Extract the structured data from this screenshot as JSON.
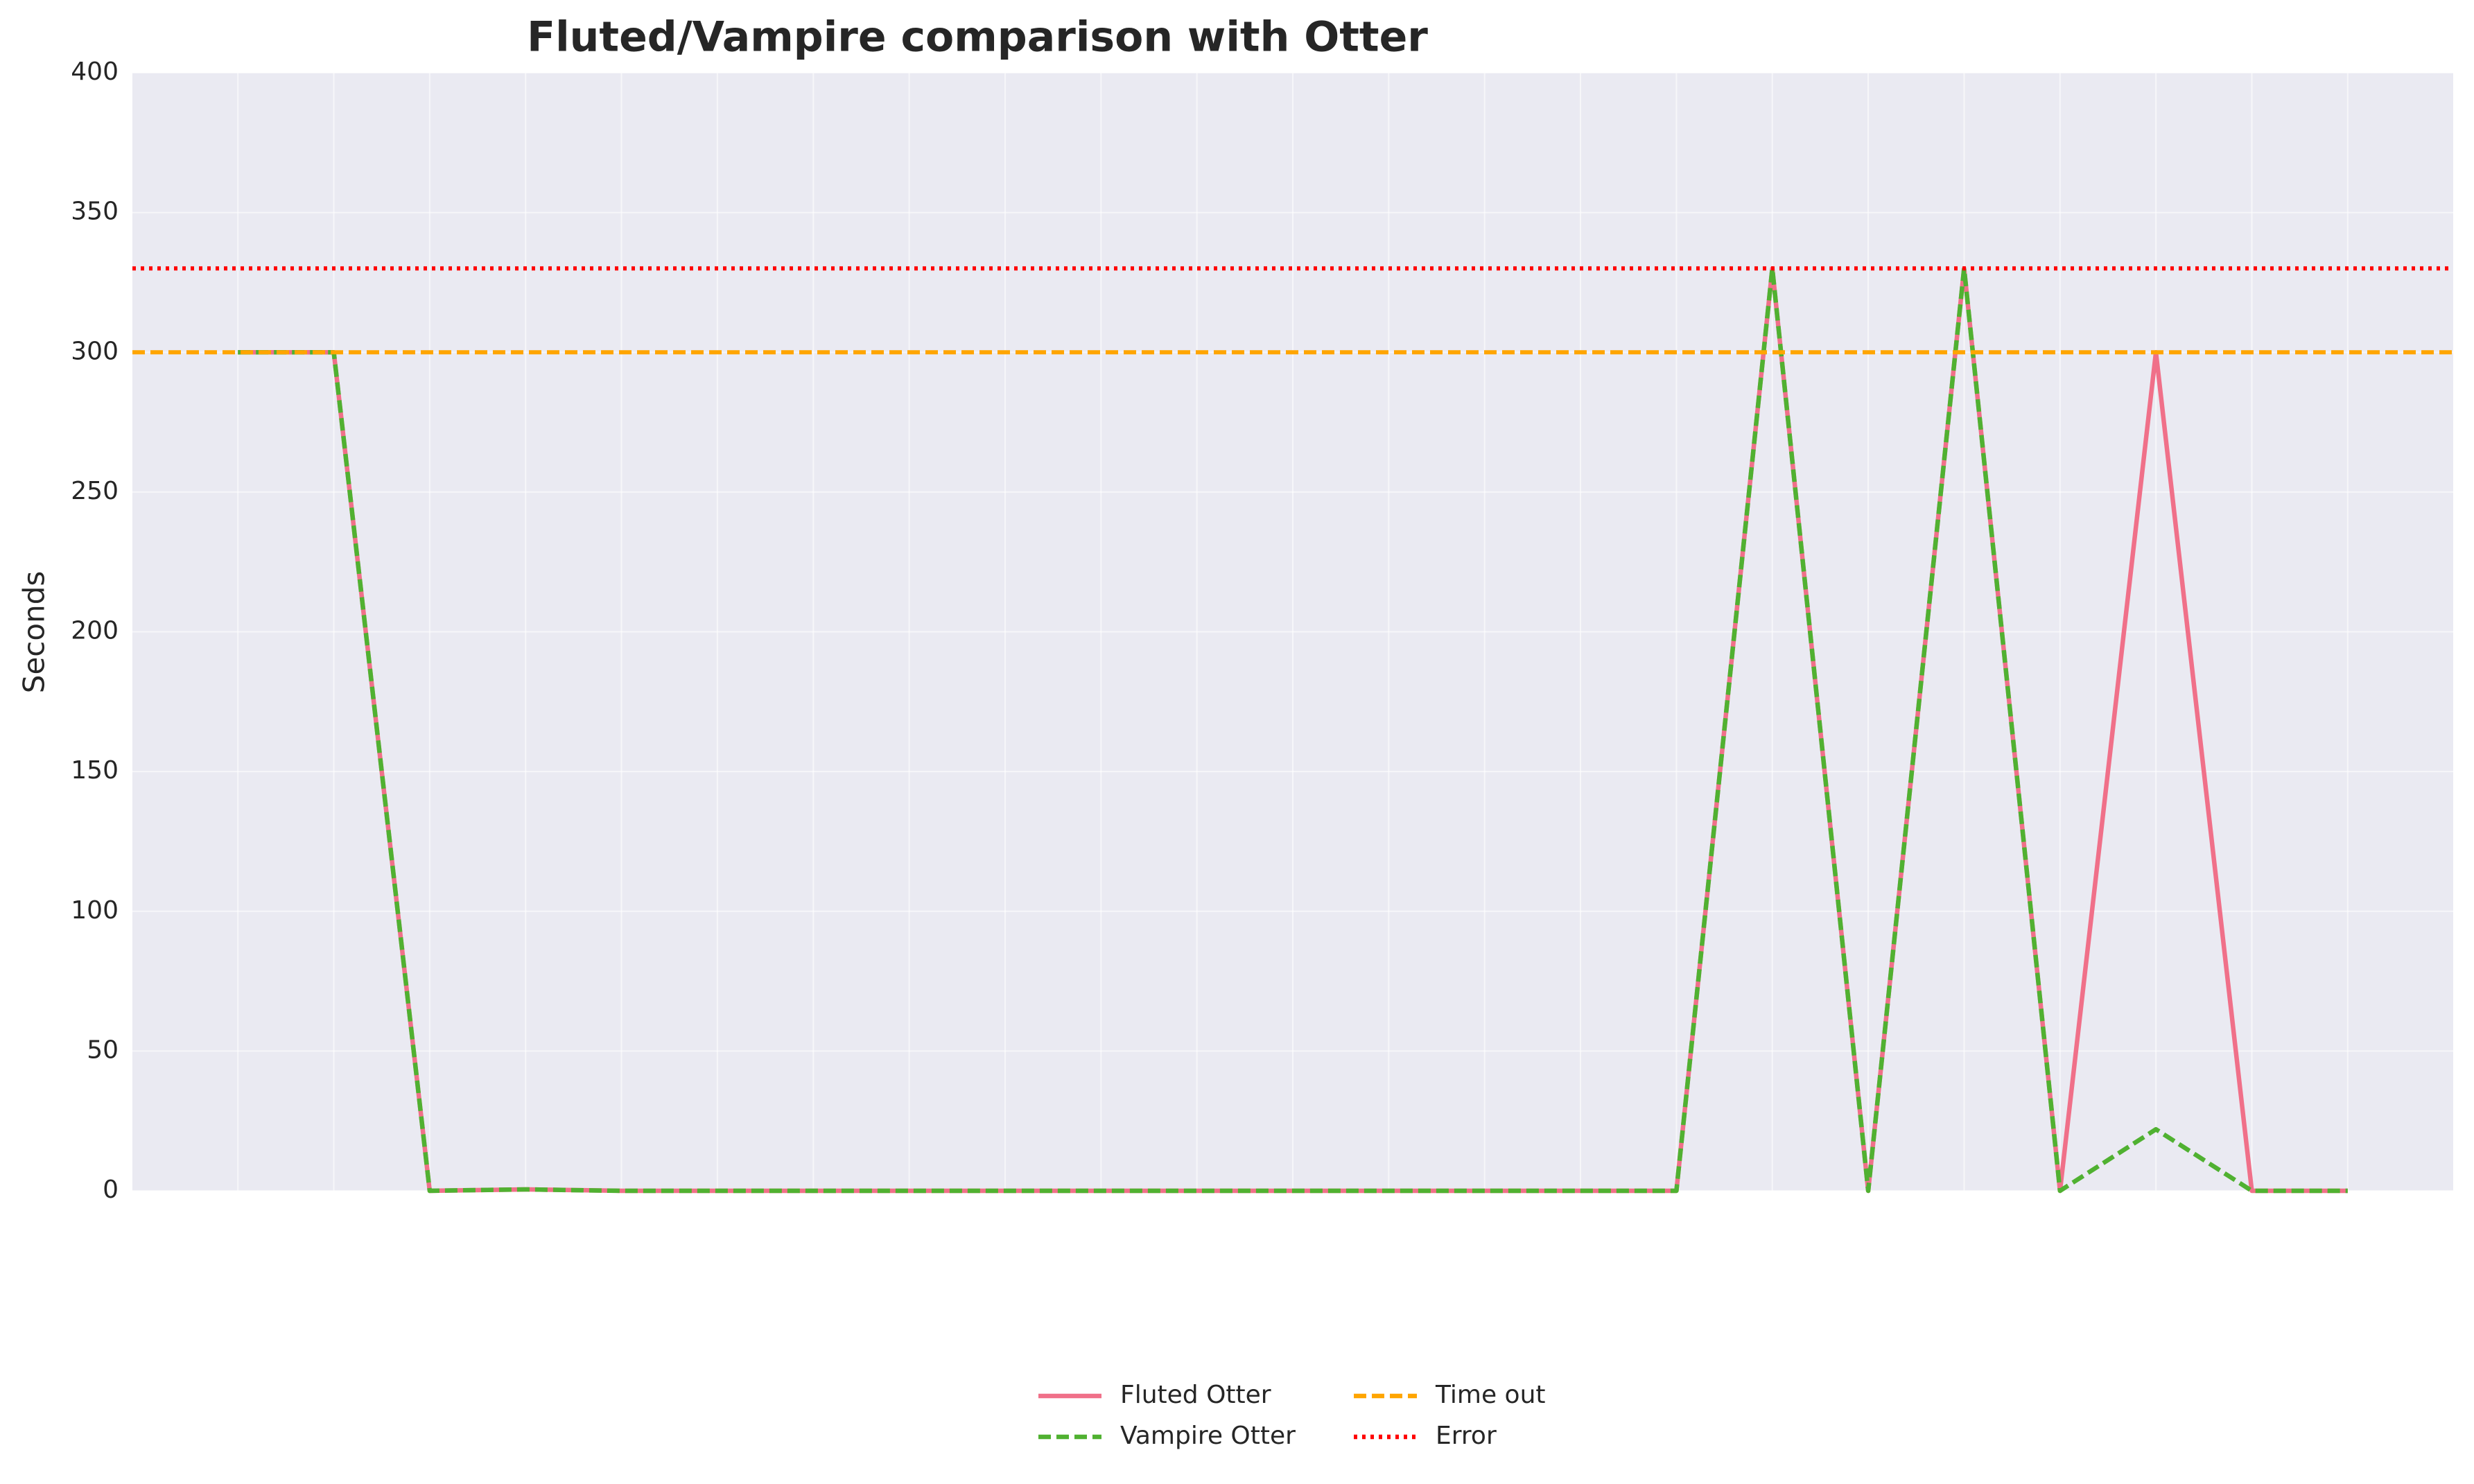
{
  "chart_data": {
    "type": "line",
    "title": "Fluted/Vampire comparison with Otter",
    "y_label": "Seconds",
    "categories": [
      null,
      null,
      null,
      null,
      null,
      null,
      null,
      null,
      null,
      null,
      null,
      null,
      null,
      null,
      null,
      null,
      null,
      null,
      null,
      null,
      null,
      null,
      null
    ],
    "series": [
      {
        "name": "Fluted Otter",
        "color": "#f07089",
        "style": "solid",
        "values": [
          300,
          300,
          0,
          0.5,
          0,
          0,
          0,
          0,
          0,
          0,
          0,
          0,
          0,
          0,
          0,
          0,
          330,
          0,
          330,
          0,
          300,
          0,
          0
        ]
      },
      {
        "name": "Vampire Otter",
        "color": "#50b131",
        "style": "dashed",
        "values": [
          300,
          300,
          0,
          0.5,
          0,
          0,
          0,
          0,
          0,
          0,
          0,
          0,
          0,
          0,
          0,
          0,
          330,
          0,
          330,
          0,
          22,
          0,
          0
        ]
      }
    ],
    "hlines": [
      {
        "name": "Time out",
        "value": 300,
        "color": "#ffa500",
        "style": "dashed"
      },
      {
        "name": "Error",
        "value": 330,
        "color": "#ff0000",
        "style": "dotted"
      }
    ],
    "ylim": [
      0,
      400
    ],
    "yticks": [
      0,
      50,
      100,
      150,
      200,
      250,
      300,
      350,
      400
    ],
    "grid": true,
    "legend": "lower center"
  }
}
